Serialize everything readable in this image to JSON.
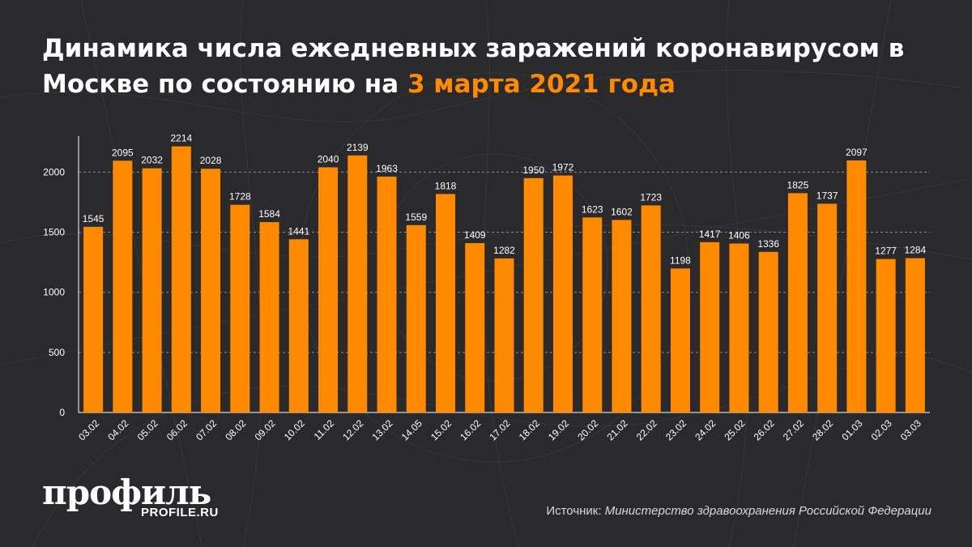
{
  "header": {
    "title_main": "Динамика числа ежедневных заражений коронавирусом в Москве по состоянию на ",
    "title_date": "3 марта 2021 года"
  },
  "colors": {
    "background": "#2a2a2d",
    "bar": "#ff8a00",
    "accent": "#ff8a00",
    "text": "#ffffff"
  },
  "chart_data": {
    "type": "bar",
    "categories": [
      "03.02",
      "04.02",
      "05.02",
      "06.02",
      "07.02",
      "08.02",
      "09.02",
      "10.02",
      "11.02",
      "12.02",
      "13.02",
      "14.05",
      "15.02",
      "16.02",
      "17.02",
      "18.02",
      "19.02",
      "20.02",
      "21.02",
      "22.02",
      "23.02",
      "24.02",
      "25.02",
      "26.02",
      "27.02",
      "28.02",
      "01.03",
      "02.03",
      "03.03"
    ],
    "values": [
      1545,
      2095,
      2032,
      2214,
      2028,
      1728,
      1584,
      1441,
      2040,
      2139,
      1963,
      1559,
      1818,
      1409,
      1282,
      1950,
      1972,
      1623,
      1602,
      1723,
      1198,
      1417,
      1406,
      1336,
      1825,
      1737,
      2097,
      1277,
      1284
    ],
    "yticks": [
      0,
      500,
      1000,
      1500,
      2000
    ],
    "ylim": [
      0,
      2400
    ],
    "grid": "horizontal dashed",
    "legend": "none"
  },
  "branding": {
    "logo_text": "профиль",
    "logo_sub": "PROFILE.RU"
  },
  "footer": {
    "source_label": "Источник: ",
    "source_value": "Министерство здравоохранения Российской Федерации"
  }
}
